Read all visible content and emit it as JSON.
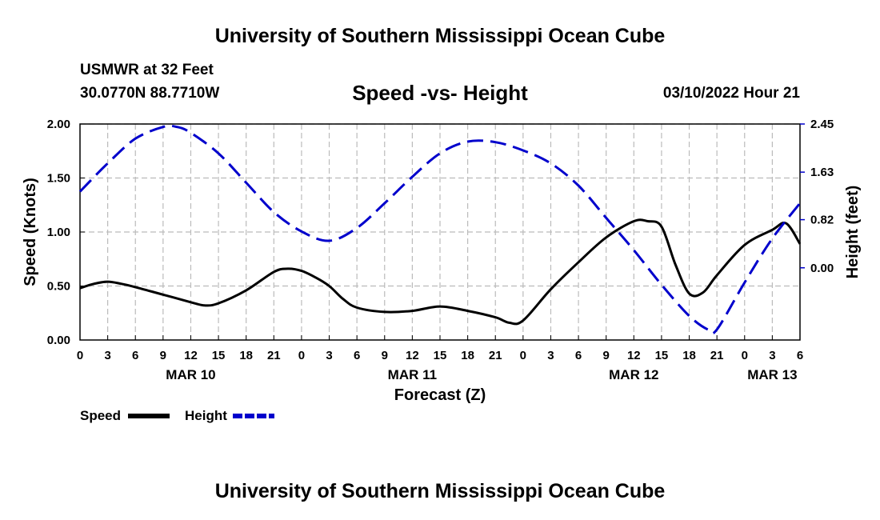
{
  "header": {
    "title": "University of Southern Mississippi Ocean Cube",
    "station": "USMWR at 32 Feet",
    "coords": "30.0770N  88.7710W",
    "date_hour": "03/10/2022 Hour 21"
  },
  "footer": {
    "title": "University of Southern Mississippi Ocean Cube"
  },
  "chart_data": {
    "type": "line",
    "title": "Speed -vs- Height",
    "xlabel": "Forecast (Z)",
    "ylabel": "Speed (Knots)",
    "y2label": "Height (feet)",
    "xlim": [
      0,
      78
    ],
    "ylim": [
      0,
      2.0
    ],
    "y2lim": [
      -1.23,
      2.45
    ],
    "x_ticks": [
      0,
      3,
      6,
      9,
      12,
      15,
      18,
      21,
      24,
      27,
      30,
      33,
      36,
      39,
      42,
      45,
      48,
      51,
      54,
      57,
      60,
      63,
      66,
      69,
      72,
      75,
      78
    ],
    "x_tick_labels": [
      "0",
      "3",
      "6",
      "9",
      "12",
      "15",
      "18",
      "21",
      "0",
      "3",
      "6",
      "9",
      "12",
      "15",
      "18",
      "21",
      "0",
      "3",
      "6",
      "9",
      "12",
      "15",
      "18",
      "21",
      "0",
      "3",
      "6"
    ],
    "date_labels": [
      {
        "x": 12,
        "label": "MAR 10"
      },
      {
        "x": 36,
        "label": "MAR 11"
      },
      {
        "x": 60,
        "label": "MAR 12"
      },
      {
        "x": 75,
        "label": "MAR 13"
      }
    ],
    "y_ticks": [
      0,
      0.5,
      1.0,
      1.5,
      2.0
    ],
    "y_tick_labels": [
      "0.00",
      "0.50",
      "1.00",
      "1.50",
      "2.00"
    ],
    "y2_ticks": [
      0,
      0.82,
      1.63,
      2.45
    ],
    "y2_tick_labels": [
      "0.00",
      "0.82",
      "1.63",
      "2.45"
    ],
    "grid": true,
    "legend_position": "bottom-left",
    "series": [
      {
        "name": "Speed",
        "axis": "left",
        "color": "#000000",
        "style": "solid",
        "x": [
          0,
          1.5,
          3,
          4.5,
          6,
          9,
          12,
          13.5,
          15,
          18,
          21,
          22.5,
          24,
          25.5,
          27,
          28.5,
          30,
          33,
          36,
          39,
          42,
          45,
          46.5,
          48,
          51,
          54,
          57,
          60,
          61.5,
          63,
          64.5,
          66,
          67.5,
          69,
          72,
          75,
          76.5,
          78
        ],
        "values": [
          0.48,
          0.52,
          0.54,
          0.52,
          0.49,
          0.42,
          0.35,
          0.32,
          0.34,
          0.46,
          0.63,
          0.66,
          0.64,
          0.58,
          0.5,
          0.38,
          0.3,
          0.26,
          0.27,
          0.31,
          0.27,
          0.21,
          0.16,
          0.18,
          0.47,
          0.72,
          0.95,
          1.1,
          1.1,
          1.05,
          0.7,
          0.43,
          0.44,
          0.6,
          0.88,
          1.02,
          1.08,
          0.89
        ]
      },
      {
        "name": "Height",
        "axis": "right",
        "color": "#0000cc",
        "style": "dashed",
        "x": [
          0,
          3,
          6,
          9,
          10.5,
          12,
          15,
          18,
          21,
          24,
          27,
          30,
          33,
          36,
          39,
          42,
          45,
          48,
          51,
          54,
          57,
          60,
          63,
          66,
          68,
          69,
          72,
          75,
          78
        ],
        "values": [
          1.3,
          1.78,
          2.2,
          2.4,
          2.4,
          2.3,
          1.95,
          1.45,
          0.95,
          0.62,
          0.46,
          0.68,
          1.1,
          1.55,
          1.95,
          2.15,
          2.14,
          2.0,
          1.78,
          1.4,
          0.85,
          0.3,
          -0.29,
          -0.82,
          -1.05,
          -1.05,
          -0.25,
          0.5,
          1.1
        ]
      }
    ]
  }
}
